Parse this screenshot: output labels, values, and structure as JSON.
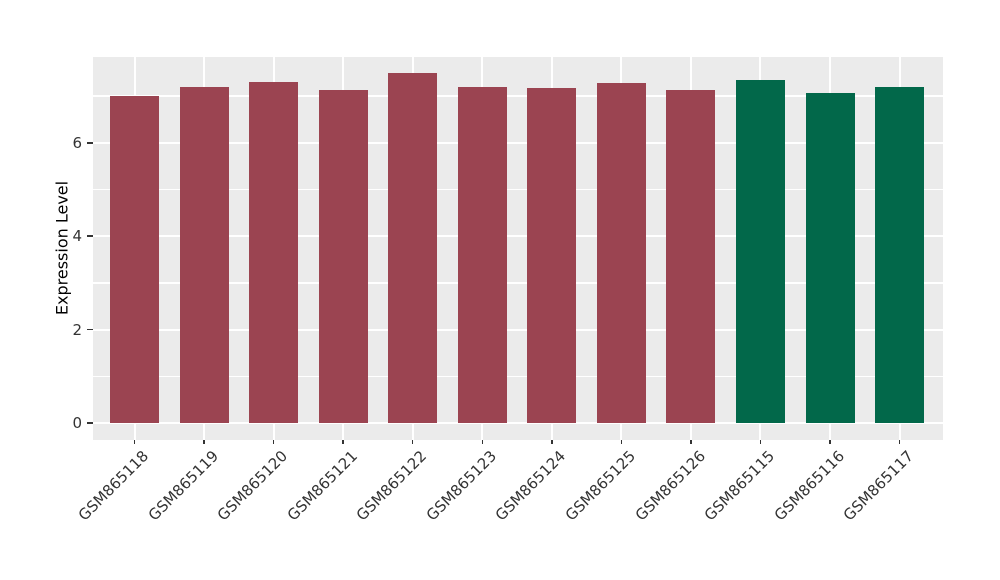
{
  "chart_data": {
    "type": "bar",
    "title": "",
    "xlabel": "",
    "ylabel": "Expression Level",
    "categories": [
      "GSM865118",
      "GSM865119",
      "GSM865120",
      "GSM865121",
      "GSM865122",
      "GSM865123",
      "GSM865124",
      "GSM865125",
      "GSM865126",
      "GSM865115",
      "GSM865116",
      "GSM865117"
    ],
    "values": [
      7.01,
      7.2,
      7.3,
      7.13,
      7.49,
      7.19,
      7.18,
      7.29,
      7.13,
      7.34,
      7.07,
      7.2
    ],
    "bar_colors": [
      "#9B4451",
      "#9B4451",
      "#9B4451",
      "#9B4451",
      "#9B4451",
      "#9B4451",
      "#9B4451",
      "#9B4451",
      "#9B4451",
      "#02684A",
      "#02684A",
      "#02684A"
    ],
    "ylim": [
      0,
      7.85
    ],
    "yticks": [
      0,
      2,
      4,
      6
    ],
    "yticks_minor": [
      1,
      3,
      5,
      7
    ],
    "grid": "white major+minor horizontal lines, white vertical lines at category centers",
    "legend_position": "none",
    "panel_background": "#EBEBEB",
    "gridline_color": "#FFFFFF",
    "tick_label_color": "#333333",
    "bar_width_fraction": 0.7
  }
}
